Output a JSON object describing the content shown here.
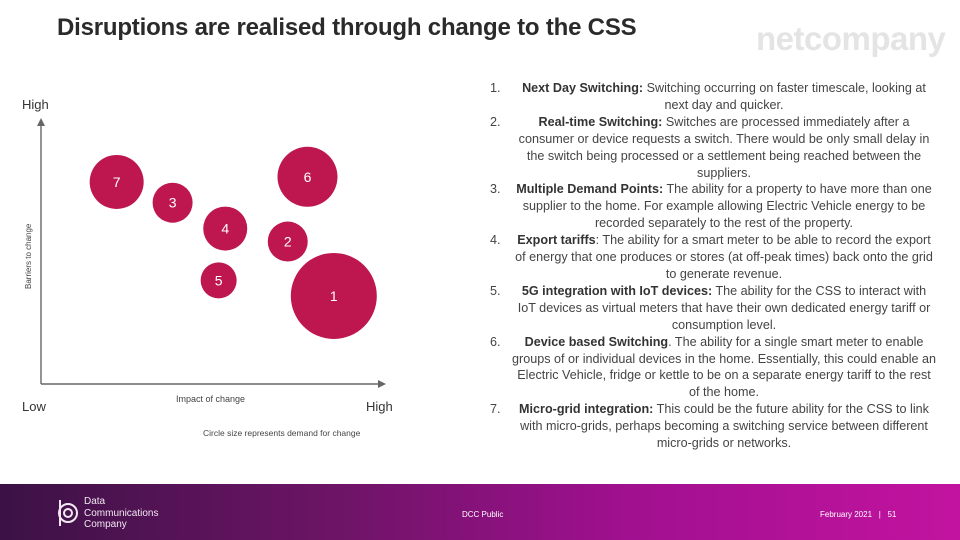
{
  "slide": {
    "title": "Disruptions are realised through change to the CSS",
    "brand": "netcompany"
  },
  "chart_data": {
    "type": "scatter",
    "title": "",
    "xlabel": "Impact of change",
    "ylabel": "Barriers to change",
    "x_high_label": "High",
    "y_high_label": "High",
    "origin_label": "Low",
    "note": "Circle size represents demand for change",
    "xlim": [
      0,
      100
    ],
    "ylim": [
      0,
      100
    ],
    "bubble_color": "#be1750",
    "points": [
      {
        "label": "7",
        "x": 23,
        "y": 78,
        "size": 27
      },
      {
        "label": "3",
        "x": 40,
        "y": 70,
        "size": 20
      },
      {
        "label": "4",
        "x": 56,
        "y": 60,
        "size": 22
      },
      {
        "label": "6",
        "x": 81,
        "y": 80,
        "size": 30
      },
      {
        "label": "2",
        "x": 75,
        "y": 55,
        "size": 20
      },
      {
        "label": "5",
        "x": 54,
        "y": 40,
        "size": 18
      },
      {
        "label": "1",
        "x": 89,
        "y": 34,
        "size": 43
      }
    ]
  },
  "items": [
    {
      "num": "1.",
      "bold": "Next Day Switching:",
      "text": " Switching occurring on faster timescale, looking at next day and quicker."
    },
    {
      "num": "2.",
      "bold": "Real-time Switching:",
      "text": " Switches are processed immediately after a consumer or device requests a switch. There would be only small delay in the switch being processed or a settlement being reached between the suppliers."
    },
    {
      "num": "3.",
      "bold": "Multiple Demand Points:",
      "text": " The ability for a property to have more than one supplier to the home. For example allowing Electric Vehicle energy to be recorded separately to the rest of the property."
    },
    {
      "num": "4.",
      "bold": "Export tariffs",
      "text": ": The ability for a smart meter to be able to record the export of energy that one produces or stores (at off-peak times) back onto the grid to generate revenue."
    },
    {
      "num": "5.",
      "bold": "5G integration with IoT devices:",
      "text": " The ability for the CSS to interact with IoT devices as virtual meters that have their own dedicated energy tariff or consumption level."
    },
    {
      "num": "6.",
      "bold": "Device based Switching",
      "text": ". The ability for a single smart meter to enable groups of or individual devices in the home. Essentially, this could enable an Electric Vehicle, fridge or kettle to be on a separate energy tariff to the rest of the home."
    },
    {
      "num": "7.",
      "bold": "Micro-grid integration:",
      "text": " This could be the future ability for the CSS to link with micro-grids, perhaps becoming a switching service between different micro-grids or networks."
    }
  ],
  "footer": {
    "org_name": "Data Communications Company",
    "classification": "DCC Public",
    "date": "February 2021",
    "separator": "|",
    "page": "51"
  }
}
